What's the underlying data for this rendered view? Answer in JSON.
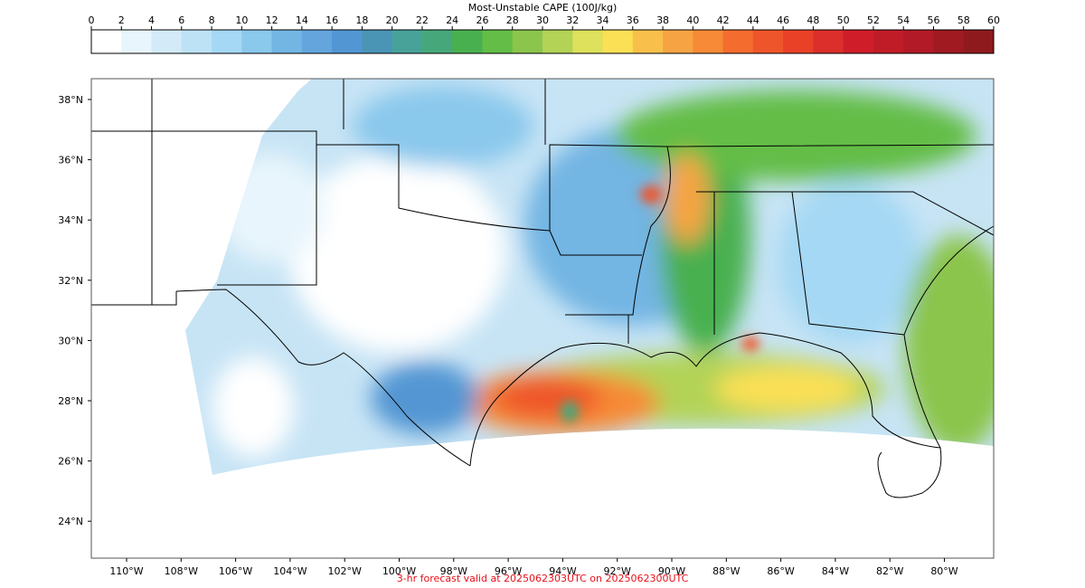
{
  "colorbar": {
    "title": "Most-Unstable CAPE (100J/kg)",
    "ticks": [
      0,
      2,
      4,
      6,
      8,
      10,
      12,
      14,
      16,
      18,
      20,
      22,
      24,
      26,
      28,
      30,
      32,
      34,
      36,
      38,
      40,
      42,
      44,
      46,
      48,
      50,
      52,
      54,
      56,
      58,
      60
    ],
    "colors": [
      "#ffffff",
      "#e8f5fc",
      "#d3ebf8",
      "#bde2f6",
      "#a5d8f4",
      "#8ac8ec",
      "#73b5e3",
      "#63a5dc",
      "#5296d3",
      "#4a94b6",
      "#48a29a",
      "#46a87a",
      "#49b050",
      "#63bd46",
      "#8bc54c",
      "#b2d356",
      "#dde15b",
      "#fbe056",
      "#f8c04a",
      "#f6a443",
      "#f68a36",
      "#f46c2e",
      "#ef552a",
      "#e84128",
      "#dc2e2a",
      "#cf1e2a",
      "#c01c28",
      "#b11a26",
      "#a01a22",
      "#8f1a1e"
    ]
  },
  "map": {
    "lat_labels": [
      "38°N",
      "36°N",
      "34°N",
      "32°N",
      "30°N",
      "28°N",
      "26°N",
      "24°N"
    ],
    "lon_labels": [
      "110°W",
      "108°W",
      "106°W",
      "104°W",
      "102°W",
      "100°W",
      "98°W",
      "96°W",
      "94°W",
      "92°W",
      "90°W",
      "88°W",
      "86°W",
      "84°W",
      "82°W",
      "80°W"
    ]
  },
  "footer": "3-hr forecast valid at 2025062303UTC on 2025062300UTC"
}
